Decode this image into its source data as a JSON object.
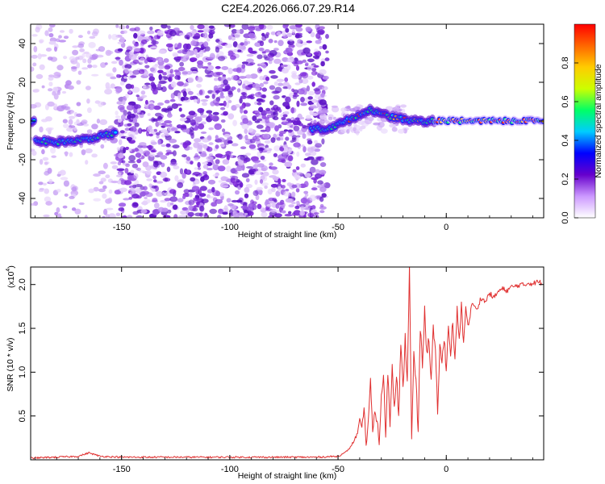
{
  "title": "C2E4.2026.066.07.29.R14",
  "chart_data": [
    {
      "type": "heatmap",
      "title": "C2E4.2026.066.07.29.R14",
      "xlabel": "Height of straight line (km)",
      "ylabel": "Frequency (Hz)",
      "xlim": [
        -192,
        45
      ],
      "ylim": [
        -50,
        50
      ],
      "xticks": [
        -150,
        -100,
        -50,
        0
      ],
      "xtick_labels": [
        "-150",
        "-100",
        "-50",
        "0"
      ],
      "yticks": [
        -40,
        -20,
        0,
        20,
        40
      ],
      "ytick_labels": [
        "-40",
        "-20",
        "0",
        "20",
        "40"
      ],
      "colorbar": {
        "label": "Normalized spectral amplitude",
        "range": [
          0,
          1
        ],
        "ticks": [
          0,
          0.2,
          0.4,
          0.6,
          0.8
        ],
        "tick_labels": [
          "0.0",
          "0.2",
          "0.4",
          "0.6",
          "0.8"
        ],
        "colormap": [
          "#ffffff",
          "#cc99ff",
          "#6600cc",
          "#0000ff",
          "#00ccff",
          "#00ff66",
          "#ccff00",
          "#ffcc00",
          "#ff6600",
          "#ff0000"
        ]
      },
      "ridge": {
        "name": "dominant frequency",
        "x": [
          -190,
          -180,
          -170,
          -160,
          -152,
          -140,
          -130,
          -120,
          -110,
          -100,
          -90,
          -80,
          -70,
          -62,
          -55,
          -48,
          -40,
          -35,
          -30,
          -25,
          -20,
          -15,
          -10,
          -5,
          0,
          10,
          20,
          30,
          43
        ],
        "y": [
          -10,
          -11,
          -10,
          -8,
          -6,
          0,
          6,
          10,
          14,
          16,
          12,
          6,
          0,
          -4,
          -4,
          -1,
          3,
          6,
          4,
          2,
          1,
          0,
          0,
          0,
          0,
          0,
          0,
          0,
          0
        ],
        "strong_x_ranges": [
          [
            -192,
            -152
          ],
          [
            -63,
            45
          ]
        ]
      },
      "noise_region_x": [
        -152,
        -55
      ]
    },
    {
      "type": "line",
      "xlabel": "Height of straight line (km)",
      "ylabel": "SNR (10 * v/v)",
      "y_multiplier_label": "(x10",
      "y_multiplier_exp": "4",
      "y_multiplier_close": ")",
      "xlim": [
        -192,
        45
      ],
      "ylim": [
        0,
        2.2
      ],
      "xticks": [
        -150,
        -100,
        -50,
        0
      ],
      "xtick_labels": [
        "-150",
        "-100",
        "-50",
        "0"
      ],
      "yticks": [
        0.5,
        1.0,
        1.5,
        2.0
      ],
      "ytick_labels": [
        "0.5",
        "1.0",
        "1.5",
        "2.0"
      ],
      "series": [
        {
          "name": "SNR",
          "color": "#e03030",
          "x": [
            -192,
            -180,
            -170,
            -165,
            -160,
            -150,
            -120,
            -90,
            -60,
            -50,
            -47,
            -45,
            -43,
            -41,
            -40,
            -39,
            -38,
            -37,
            -36,
            -35,
            -34,
            -33,
            -32,
            -31,
            -30,
            -29,
            -28,
            -27,
            -26,
            -25,
            -24,
            -23,
            -22,
            -21,
            -20,
            -19,
            -18,
            -17,
            -16,
            -15,
            -14,
            -13,
            -12,
            -11,
            -10,
            -9,
            -8,
            -7,
            -6,
            -5,
            -4,
            -3,
            -2,
            -1,
            0,
            1,
            2,
            3,
            4,
            5,
            6,
            7,
            8,
            9,
            10,
            11,
            12,
            14,
            16,
            18,
            20,
            22,
            24,
            26,
            28,
            30,
            32,
            34,
            36,
            38,
            40,
            42,
            44
          ],
          "y": [
            0.02,
            0.03,
            0.04,
            0.08,
            0.04,
            0.03,
            0.03,
            0.03,
            0.03,
            0.04,
            0.08,
            0.12,
            0.2,
            0.3,
            0.45,
            0.35,
            0.6,
            0.15,
            0.45,
            0.9,
            0.3,
            0.55,
            0.45,
            0.2,
            0.7,
            0.95,
            0.3,
            1.0,
            0.4,
            1.1,
            0.6,
            1.0,
            0.5,
            1.3,
            0.8,
            1.4,
            0.9,
            2.2,
            0.2,
            1.2,
            0.9,
            0.3,
            1.5,
            1.1,
            1.7,
            1.2,
            1.4,
            0.9,
            1.5,
            1.2,
            0.55,
            1.3,
            1.1,
            1.4,
            1.05,
            1.5,
            1.2,
            1.6,
            1.1,
            1.7,
            1.35,
            1.75,
            1.3,
            1.8,
            1.5,
            1.65,
            1.8,
            1.7,
            1.85,
            1.8,
            1.9,
            1.85,
            1.92,
            1.95,
            1.93,
            1.97,
            1.98,
            2.0,
            1.99,
            2.02,
            2.01,
            2.03,
            2.02
          ]
        }
      ]
    }
  ]
}
